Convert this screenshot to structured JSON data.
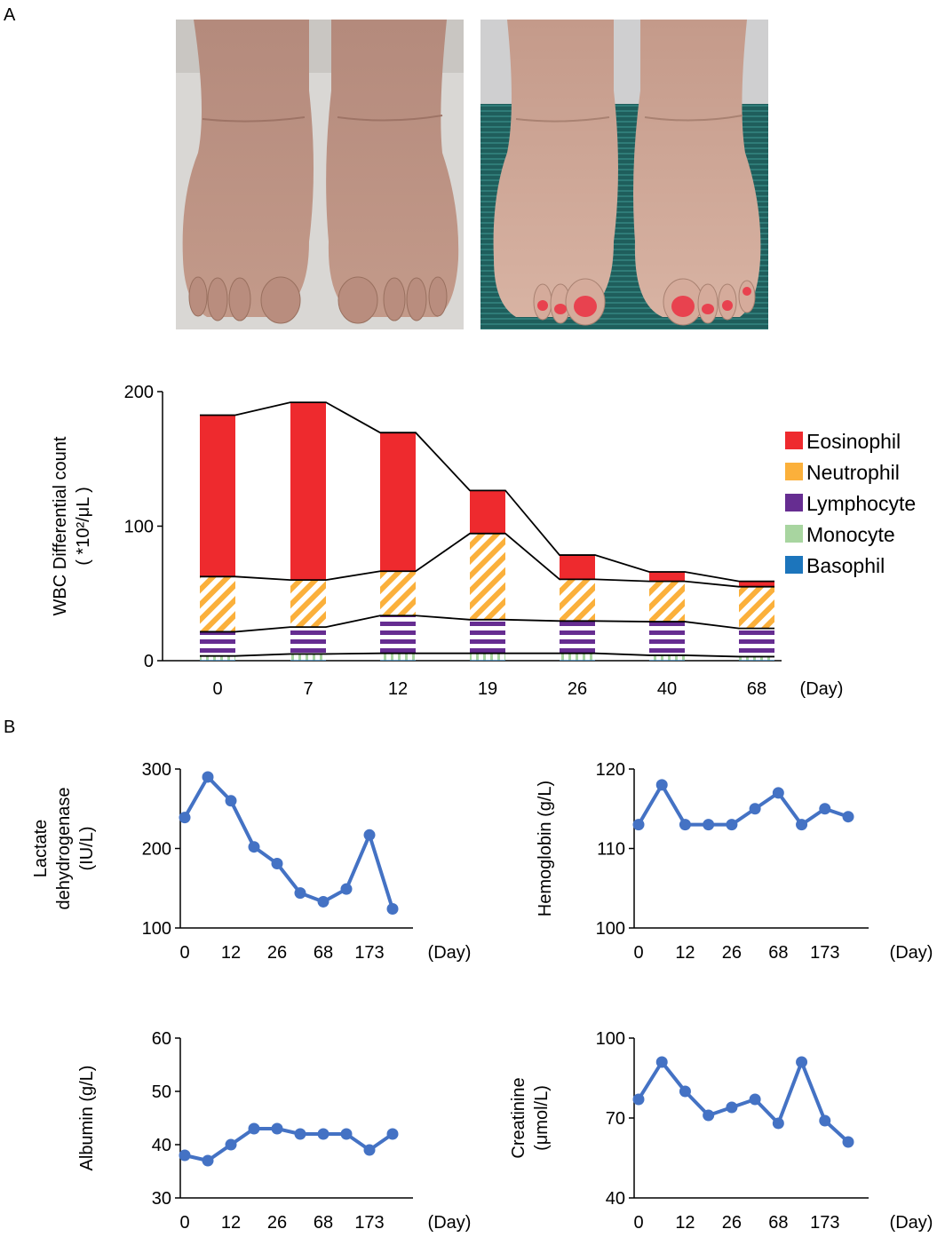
{
  "panels": {
    "a": "A",
    "b": "B"
  },
  "photos": [
    {
      "name": "feet-before",
      "caption": ""
    },
    {
      "name": "feet-after",
      "caption": ""
    }
  ],
  "colors": {
    "eosinophil": "#ee2a2e",
    "neutrophil": "#fbb03b",
    "lymphocyte": "#662d91",
    "monocyte": "#a8d5a0",
    "basophil": "#1c75bc",
    "line": "#4472c4"
  },
  "chart_data": [
    {
      "type": "bar",
      "stacked": true,
      "ylabel_line1": "WBC Differential count",
      "ylabel_line2": "( *10²/μL )",
      "xunit": "(Day)",
      "categories": [
        "0",
        "7",
        "12",
        "19",
        "26",
        "40",
        "68"
      ],
      "ylim": [
        0,
        200
      ],
      "yticks": [
        0,
        100,
        200
      ],
      "series": [
        {
          "name": "Basophil",
          "key": "basophil",
          "values": [
            0.5,
            0.5,
            0.5,
            0.5,
            0.5,
            0.5,
            0.5
          ]
        },
        {
          "name": "Monocyte",
          "key": "monocyte",
          "values": [
            3,
            4.5,
            5,
            5,
            5,
            3.5,
            2.5
          ]
        },
        {
          "name": "Lymphocyte",
          "key": "lymphocyte",
          "values": [
            18,
            20,
            28,
            25,
            24,
            25,
            21
          ]
        },
        {
          "name": "Neutrophil",
          "key": "neutrophil",
          "values": [
            41,
            35,
            33,
            64,
            31,
            30,
            31
          ]
        },
        {
          "name": "Eosinophil",
          "key": "eosinophil",
          "values": [
            120,
            132,
            103,
            32,
            18,
            7,
            4
          ]
        }
      ],
      "legend_order": [
        "Eosinophil",
        "Neutrophil",
        "Lymphocyte",
        "Monocyte",
        "Basophil"
      ],
      "legend_position": "right"
    },
    {
      "type": "line",
      "ylabel_line1": "Lactate",
      "ylabel_line2": "dehydrogenase",
      "ylabel_line3": "(IU/L)",
      "xunit": "(Day)",
      "xticklabels": [
        "0",
        "12",
        "26",
        "68",
        "173"
      ],
      "ylim": [
        100,
        300
      ],
      "yticks": [
        100,
        200,
        300
      ],
      "values": [
        239,
        290,
        260,
        202,
        181,
        144,
        133,
        149,
        217,
        124
      ]
    },
    {
      "type": "line",
      "ylabel_line1": "Hemoglobin (g/L)",
      "xunit": "(Day)",
      "xticklabels": [
        "0",
        "12",
        "26",
        "68",
        "173"
      ],
      "ylim": [
        100,
        120
      ],
      "yticks": [
        100,
        110,
        120
      ],
      "values": [
        113,
        118,
        113,
        113,
        113,
        115,
        117,
        113,
        115,
        114
      ]
    },
    {
      "type": "line",
      "ylabel_line1": "Albumin (g/L)",
      "xunit": "(Day)",
      "xticklabels": [
        "0",
        "12",
        "26",
        "68",
        "173"
      ],
      "ylim": [
        30,
        60
      ],
      "yticks": [
        30,
        40,
        50,
        60
      ],
      "values": [
        38,
        37,
        40,
        43,
        43,
        42,
        42,
        42,
        39,
        42
      ]
    },
    {
      "type": "line",
      "ylabel_line1": "Creatinine",
      "ylabel_line2": "(μmol/L)",
      "xunit": "(Day)",
      "xticklabels": [
        "0",
        "12",
        "26",
        "68",
        "173"
      ],
      "ylim": [
        40,
        100
      ],
      "yticks": [
        40,
        70,
        100
      ],
      "values": [
        77,
        91,
        80,
        71,
        74,
        77,
        68,
        91,
        69,
        61
      ]
    }
  ]
}
